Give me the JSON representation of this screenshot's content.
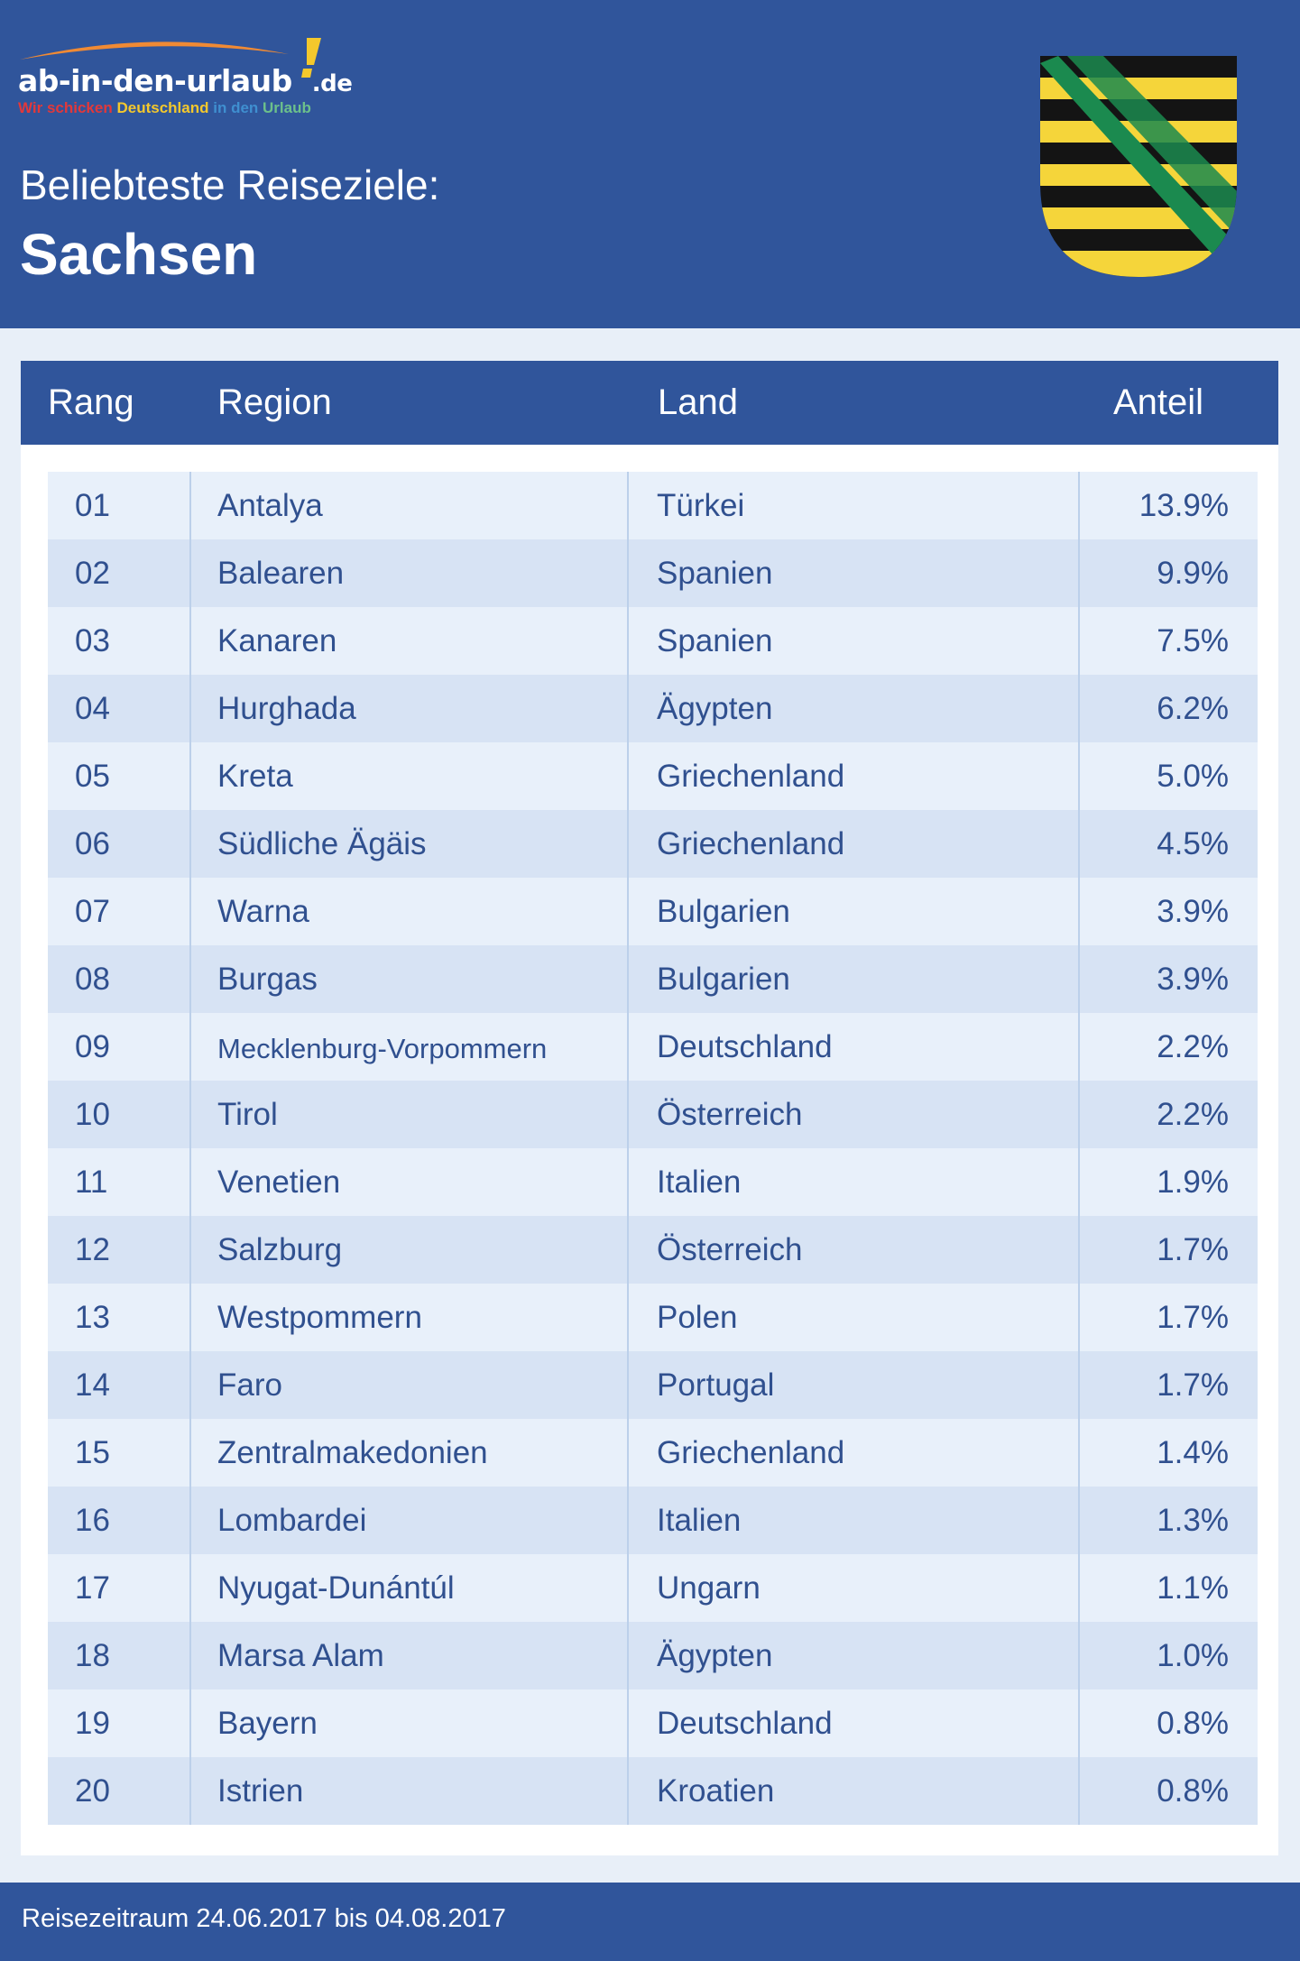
{
  "logo": {
    "main": "ab-in-den-urlaub",
    "tld": "de",
    "tagline": [
      "Wir schicken",
      "Deutschland",
      "in den",
      "Urlaub"
    ],
    "tagline_colors": [
      "#e2383a",
      "#f4c82c",
      "#3f8fd0",
      "#6cc08b"
    ]
  },
  "header": {
    "title": "Beliebteste Reiseziele:",
    "subtitle": "Sachsen",
    "coat_of_arms": "coat-of-arms-saxony"
  },
  "table": {
    "columns": [
      "Rang",
      "Region",
      "Land",
      "Anteil"
    ],
    "rows": [
      [
        "01",
        "Antalya",
        "Türkei",
        "13.9%"
      ],
      [
        "02",
        "Balearen",
        "Spanien",
        "9.9%"
      ],
      [
        "03",
        "Kanaren",
        "Spanien",
        "7.5%"
      ],
      [
        "04",
        "Hurghada",
        "Ägypten",
        "6.2%"
      ],
      [
        "05",
        "Kreta",
        "Griechenland",
        "5.0%"
      ],
      [
        "06",
        "Südliche Ägäis",
        "Griechenland",
        "4.5%"
      ],
      [
        "07",
        "Warna",
        "Bulgarien",
        "3.9%"
      ],
      [
        "08",
        "Burgas",
        "Bulgarien",
        "3.9%"
      ],
      [
        "09",
        "Mecklenburg-Vorpommern",
        "Deutschland",
        "2.2%"
      ],
      [
        "10",
        "Tirol",
        "Österreich",
        "2.2%"
      ],
      [
        "11",
        "Venetien",
        "Italien",
        "1.9%"
      ],
      [
        "12",
        "Salzburg",
        "Österreich",
        "1.7%"
      ],
      [
        "13",
        "Westpommern",
        "Polen",
        "1.7%"
      ],
      [
        "14",
        "Faro",
        "Portugal",
        "1.7%"
      ],
      [
        "15",
        "Zentralmakedonien",
        "Griechenland",
        "1.4%"
      ],
      [
        "16",
        "Lombardei",
        "Italien",
        "1.3%"
      ],
      [
        "17",
        "Nyugat-Dunántúl",
        "Ungarn",
        "1.1%"
      ],
      [
        "18",
        "Marsa Alam",
        "Ägypten",
        "1.0%"
      ],
      [
        "19",
        "Bayern",
        "Deutschland",
        "0.8%"
      ],
      [
        "20",
        "Istrien",
        "Kroatien",
        "0.8%"
      ]
    ]
  },
  "footer": {
    "text": "Reisezeitraum 24.06.2017 bis 04.08.2017"
  },
  "colors": {
    "brand_blue": "#30559b",
    "row_light": "#e8f0fa",
    "row_dark": "#d7e3f4",
    "text": "#30508f"
  }
}
